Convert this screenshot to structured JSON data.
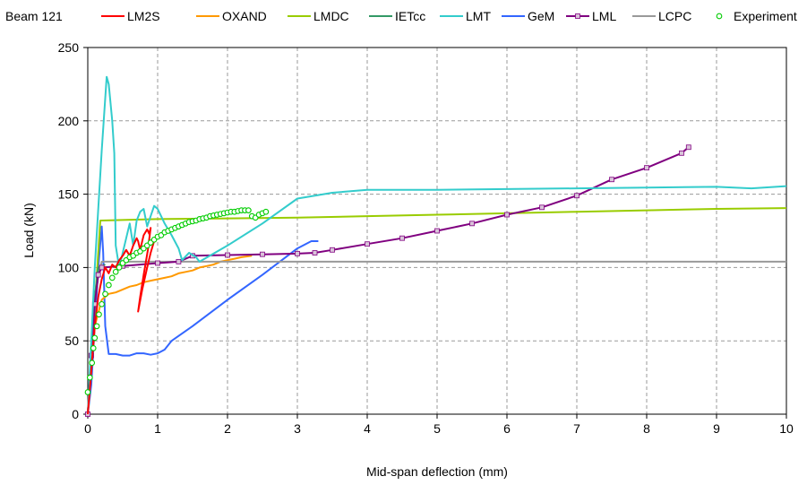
{
  "chart_data": {
    "type": "line",
    "title": "Beam 121",
    "xlabel": "Mid-span deflection (mm)",
    "ylabel": "Load (kN)",
    "xlim": [
      0,
      10
    ],
    "ylim": [
      0,
      250
    ],
    "x_ticks": [
      "0",
      "1",
      "2",
      "3",
      "4",
      "5",
      "6",
      "7",
      "8",
      "9",
      "10"
    ],
    "y_ticks": [
      "0",
      "50",
      "100",
      "150",
      "200",
      "250"
    ],
    "grid": true,
    "grid_style": "dashed",
    "legend_position": "top",
    "series": [
      {
        "name": "LM2S",
        "color": "#ff0000",
        "marker": "none",
        "points": [
          [
            0.0,
            0
          ],
          [
            0.05,
            30
          ],
          [
            0.1,
            60
          ],
          [
            0.15,
            80
          ],
          [
            0.2,
            92
          ],
          [
            0.25,
            100
          ],
          [
            0.3,
            96
          ],
          [
            0.35,
            102
          ],
          [
            0.4,
            100
          ],
          [
            0.45,
            105
          ],
          [
            0.5,
            108
          ],
          [
            0.55,
            112
          ],
          [
            0.6,
            108
          ],
          [
            0.65,
            115
          ],
          [
            0.7,
            120
          ],
          [
            0.72,
            118
          ],
          [
            0.75,
            112
          ],
          [
            0.78,
            118
          ],
          [
            0.8,
            122
          ],
          [
            0.85,
            126
          ],
          [
            0.88,
            123
          ],
          [
            0.9,
            127
          ],
          [
            0.86,
            112
          ],
          [
            0.8,
            95
          ],
          [
            0.75,
            80
          ],
          [
            0.72,
            70
          ],
          [
            0.78,
            85
          ],
          [
            0.85,
            100
          ],
          [
            0.9,
            110
          ],
          [
            0.95,
            118
          ],
          [
            1.0,
            122
          ]
        ]
      },
      {
        "name": "OXAND",
        "color": "#ff9900",
        "marker": "none",
        "points": [
          [
            0.0,
            0
          ],
          [
            0.1,
            60
          ],
          [
            0.2,
            78
          ],
          [
            0.3,
            82
          ],
          [
            0.4,
            83
          ],
          [
            0.5,
            85
          ],
          [
            0.6,
            87
          ],
          [
            0.7,
            88
          ],
          [
            0.8,
            90
          ],
          [
            0.9,
            91
          ],
          [
            1.0,
            92
          ],
          [
            1.1,
            93
          ],
          [
            1.2,
            94
          ],
          [
            1.3,
            96
          ],
          [
            1.4,
            97
          ],
          [
            1.5,
            98
          ],
          [
            1.6,
            100
          ],
          [
            1.7,
            101
          ],
          [
            1.8,
            102
          ],
          [
            1.9,
            104
          ],
          [
            2.0,
            105
          ],
          [
            2.1,
            106
          ],
          [
            2.2,
            107
          ],
          [
            2.35,
            108
          ]
        ]
      },
      {
        "name": "LMDC",
        "color": "#99cc00",
        "marker": "none",
        "points": [
          [
            0.0,
            0
          ],
          [
            0.18,
            132
          ],
          [
            1.0,
            133
          ],
          [
            2.0,
            133.5
          ],
          [
            3.0,
            134
          ],
          [
            4.0,
            135
          ],
          [
            5.0,
            136
          ],
          [
            6.0,
            137
          ],
          [
            7.0,
            138
          ],
          [
            8.0,
            139
          ],
          [
            9.0,
            140
          ],
          [
            10.0,
            140.5
          ]
        ]
      },
      {
        "name": "IETcc",
        "color": "#339966",
        "marker": "none",
        "points": [
          [
            0.0,
            0
          ],
          [
            0.05,
            40
          ],
          [
            0.1,
            80
          ],
          [
            0.15,
            100
          ],
          [
            0.25,
            102
          ]
        ]
      },
      {
        "name": "LMT",
        "color": "#33cccc",
        "marker": "none",
        "points": [
          [
            0.0,
            0
          ],
          [
            0.1,
            100
          ],
          [
            0.2,
            180
          ],
          [
            0.27,
            230
          ],
          [
            0.3,
            225
          ],
          [
            0.35,
            200
          ],
          [
            0.38,
            178
          ],
          [
            0.4,
            115
          ],
          [
            0.45,
            100
          ],
          [
            0.55,
            120
          ],
          [
            0.6,
            130
          ],
          [
            0.65,
            115
          ],
          [
            0.7,
            132
          ],
          [
            0.75,
            138
          ],
          [
            0.8,
            140
          ],
          [
            0.85,
            128
          ],
          [
            0.9,
            135
          ],
          [
            0.95,
            142
          ],
          [
            1.0,
            140
          ],
          [
            1.05,
            135
          ],
          [
            1.1,
            130
          ],
          [
            1.2,
            122
          ],
          [
            1.3,
            113
          ],
          [
            1.35,
            105
          ],
          [
            1.45,
            110
          ],
          [
            1.55,
            107
          ],
          [
            1.6,
            104
          ],
          [
            2.0,
            115
          ],
          [
            2.5,
            130
          ],
          [
            3.0,
            147
          ],
          [
            3.5,
            151
          ],
          [
            4.0,
            153
          ],
          [
            5.0,
            153
          ],
          [
            6.0,
            153.5
          ],
          [
            7.0,
            154
          ],
          [
            8.0,
            154.5
          ],
          [
            9.0,
            155
          ],
          [
            9.5,
            154
          ],
          [
            10.0,
            155.5
          ]
        ]
      },
      {
        "name": "GeM",
        "color": "#3366ff",
        "marker": "none",
        "points": [
          [
            0.0,
            0
          ],
          [
            0.05,
            20
          ],
          [
            0.15,
            100
          ],
          [
            0.2,
            128
          ],
          [
            0.22,
            110
          ],
          [
            0.25,
            60
          ],
          [
            0.3,
            41
          ],
          [
            0.4,
            41
          ],
          [
            0.5,
            40
          ],
          [
            0.6,
            40
          ],
          [
            0.7,
            41.5
          ],
          [
            0.8,
            41.5
          ],
          [
            0.9,
            40.5
          ],
          [
            1.0,
            41.5
          ],
          [
            1.1,
            44
          ],
          [
            1.2,
            50
          ],
          [
            1.5,
            60
          ],
          [
            2.0,
            78
          ],
          [
            2.5,
            95
          ],
          [
            3.0,
            113
          ],
          [
            3.2,
            118
          ],
          [
            3.3,
            118
          ]
        ]
      },
      {
        "name": "LML",
        "color": "#800080",
        "marker": "square",
        "points": [
          [
            0.0,
            0
          ],
          [
            0.05,
            40
          ],
          [
            0.1,
            75
          ],
          [
            0.15,
            95
          ],
          [
            0.2,
            100
          ],
          [
            0.5,
            101
          ],
          [
            1.0,
            103
          ],
          [
            1.3,
            104
          ],
          [
            1.5,
            108
          ],
          [
            2.0,
            108.5
          ],
          [
            2.5,
            109
          ],
          [
            3.0,
            109.5
          ],
          [
            3.25,
            110
          ],
          [
            3.5,
            112
          ],
          [
            4.0,
            116
          ],
          [
            4.5,
            120
          ],
          [
            5.0,
            125
          ],
          [
            5.5,
            130
          ],
          [
            6.0,
            136
          ],
          [
            6.5,
            141
          ],
          [
            7.0,
            149
          ],
          [
            7.5,
            160
          ],
          [
            8.0,
            168
          ],
          [
            8.5,
            178
          ],
          [
            8.6,
            182
          ]
        ]
      },
      {
        "name": "LCPC",
        "color": "#999999",
        "marker": "none",
        "points": [
          [
            0.0,
            0
          ],
          [
            0.05,
            40
          ],
          [
            0.1,
            75
          ],
          [
            0.15,
            95
          ],
          [
            0.2,
            104
          ],
          [
            1.0,
            104
          ],
          [
            5.0,
            104
          ],
          [
            10.0,
            104
          ]
        ]
      },
      {
        "name": "Experiment",
        "color": "#00cc00",
        "marker": "circle",
        "points": [
          [
            0.0,
            15
          ],
          [
            0.03,
            25
          ],
          [
            0.06,
            35
          ],
          [
            0.08,
            45
          ],
          [
            0.1,
            52
          ],
          [
            0.13,
            60
          ],
          [
            0.16,
            68
          ],
          [
            0.2,
            75
          ],
          [
            0.25,
            82
          ],
          [
            0.3,
            88
          ],
          [
            0.35,
            93
          ],
          [
            0.4,
            97
          ],
          [
            0.45,
            100
          ],
          [
            0.5,
            103
          ],
          [
            0.55,
            105
          ],
          [
            0.6,
            107
          ],
          [
            0.65,
            108
          ],
          [
            0.7,
            110
          ],
          [
            0.75,
            111
          ],
          [
            0.8,
            113
          ],
          [
            0.85,
            115
          ],
          [
            0.9,
            117
          ],
          [
            0.95,
            119
          ],
          [
            1.0,
            121
          ],
          [
            1.05,
            122
          ],
          [
            1.1,
            124
          ],
          [
            1.15,
            125
          ],
          [
            1.2,
            126
          ],
          [
            1.25,
            127
          ],
          [
            1.3,
            128
          ],
          [
            1.35,
            129
          ],
          [
            1.4,
            130
          ],
          [
            1.45,
            131
          ],
          [
            1.5,
            131.5
          ],
          [
            1.55,
            132
          ],
          [
            1.6,
            133
          ],
          [
            1.65,
            133.5
          ],
          [
            1.7,
            134
          ],
          [
            1.75,
            135
          ],
          [
            1.8,
            135.5
          ],
          [
            1.85,
            136
          ],
          [
            1.9,
            136.5
          ],
          [
            1.95,
            137
          ],
          [
            2.0,
            137.5
          ],
          [
            2.05,
            138
          ],
          [
            2.1,
            138
          ],
          [
            2.15,
            138.5
          ],
          [
            2.2,
            139
          ],
          [
            2.25,
            139
          ],
          [
            2.3,
            139
          ],
          [
            2.35,
            135
          ],
          [
            2.4,
            134
          ],
          [
            2.45,
            136
          ],
          [
            2.5,
            137
          ],
          [
            2.55,
            138
          ]
        ]
      }
    ]
  }
}
